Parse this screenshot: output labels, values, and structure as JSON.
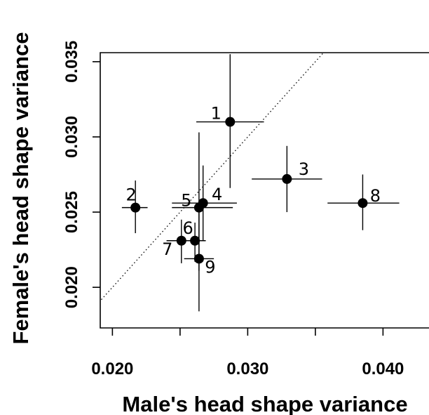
{
  "chart_data": {
    "type": "scatter",
    "xlabel": "Male's head shape variance",
    "ylabel": "Female's head shape variance",
    "xlim": [
      0.0191,
      0.0434
    ],
    "ylim": [
      0.0173,
      0.0356
    ],
    "xticks": [
      0.02,
      0.03,
      0.04
    ],
    "xtick_labels": [
      "0.020",
      "0.030",
      "0.040"
    ],
    "yticks": [
      0.02,
      0.025,
      0.03,
      0.035
    ],
    "ytick_labels": [
      "0.020",
      "0.025",
      "0.030",
      "0.035"
    ],
    "grid": false,
    "reference_line": "y = x (dotted)",
    "points": [
      {
        "label": "1",
        "x": 0.0287,
        "y": 0.031,
        "x_err": [
          0.0262,
          0.0312
        ],
        "y_err": [
          0.0266,
          0.0355
        ]
      },
      {
        "label": "2",
        "x": 0.0217,
        "y": 0.0253,
        "x_err": [
          0.0207,
          0.0226
        ],
        "y_err": [
          0.0236,
          0.0271
        ]
      },
      {
        "label": "3",
        "x": 0.0329,
        "y": 0.0272,
        "x_err": [
          0.0303,
          0.0355
        ],
        "y_err": [
          0.025,
          0.0294
        ]
      },
      {
        "label": "4",
        "x": 0.0267,
        "y": 0.0256,
        "x_err": [
          0.0244,
          0.0292
        ],
        "y_err": [
          0.0231,
          0.0281
        ]
      },
      {
        "label": "5",
        "x": 0.0264,
        "y": 0.0253,
        "x_err": [
          0.0244,
          0.0289
        ],
        "y_err": [
          0.0211,
          0.0303
        ]
      },
      {
        "label": "6",
        "x": 0.0261,
        "y": 0.0231,
        "x_err": [
          0.0253,
          0.0269
        ],
        "y_err": [
          0.0217,
          0.0243
        ]
      },
      {
        "label": "7",
        "x": 0.0251,
        "y": 0.0231,
        "x_err": [
          0.024,
          0.0262
        ],
        "y_err": [
          0.0216,
          0.0245
        ]
      },
      {
        "label": "8",
        "x": 0.0385,
        "y": 0.0256,
        "x_err": [
          0.0359,
          0.0412
        ],
        "y_err": [
          0.0238,
          0.0275
        ]
      },
      {
        "label": "9",
        "x": 0.0264,
        "y": 0.0219,
        "x_err": [
          0.0253,
          0.0275
        ],
        "y_err": [
          0.0184,
          0.0254
        ]
      }
    ]
  }
}
